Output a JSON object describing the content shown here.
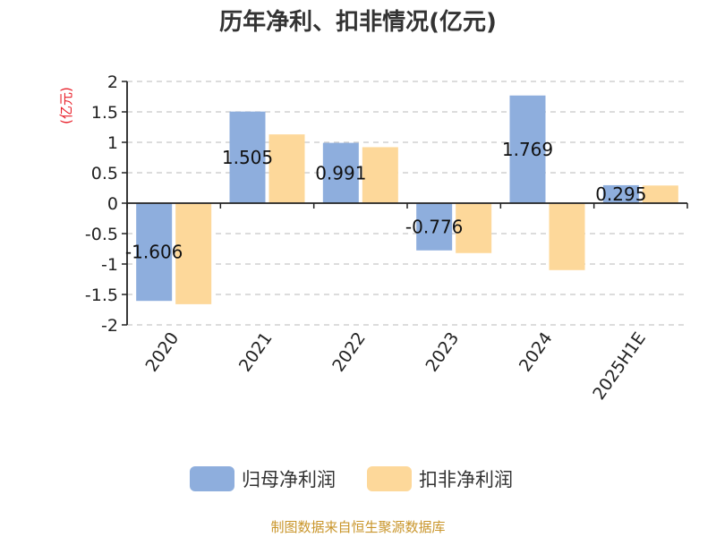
{
  "chart_data": {
    "type": "bar",
    "title": "历年净利、扣非情况(亿元)",
    "ylabel": "(亿元)",
    "categories": [
      "2020",
      "2021",
      "2022",
      "2023",
      "2024",
      "2025H1E"
    ],
    "series": [
      {
        "name": "归母净利润",
        "values": [
          -1.606,
          1.505,
          0.991,
          -0.776,
          1.769,
          0.295
        ],
        "color": "#8eaedd",
        "data_labels": [
          "-1.606",
          "1.505",
          "0.991",
          "-0.776",
          "1.769",
          "0.295"
        ]
      },
      {
        "name": "扣非净利润",
        "values": [
          -1.66,
          1.13,
          0.92,
          -0.82,
          -1.1,
          0.29
        ],
        "color": "#fdd89a"
      }
    ],
    "ylim": [
      -2,
      2
    ],
    "yticks": [
      "2",
      "1.5",
      "1",
      "0.5",
      "0",
      "-0.5",
      "-1",
      "-1.5",
      "-2"
    ],
    "ytick_values": [
      2,
      1.5,
      1,
      0.5,
      0,
      -0.5,
      -1,
      -1.5,
      -2
    ],
    "grid": true,
    "legend_position": "bottom"
  },
  "source": "制图数据来自恒生聚源数据库"
}
